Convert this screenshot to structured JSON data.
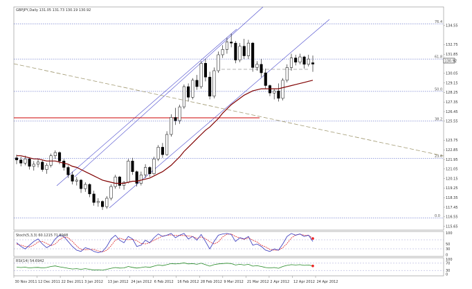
{
  "chart_data": {
    "type": "candlestick",
    "title": "GBPJPY,Daily 131.05 131.73 130.19 130.92",
    "x_labels": [
      "30 Nov 2011",
      "12 Dec 2011",
      "22 Dec 2011",
      "3 Jan 2012",
      "13 Jan 2012",
      "24 Jan 2012",
      "6 Feb 2012",
      "16 Feb 2012",
      "28 Feb 2012",
      "9 Mar 2012",
      "21 Mar 2012",
      "2 Apr 2012",
      "12 Apr 2012",
      "24 Apr 2012"
    ],
    "y_ticks": [
      "134.55",
      "132.75",
      "131.85",
      "130.05",
      "129.15",
      "128.25",
      "127.35",
      "126.45",
      "125.55",
      "123.75",
      "122.85",
      "121.95",
      "121.05",
      "120.15",
      "119.25",
      "118.35",
      "117.45",
      "116.55",
      "115.65"
    ],
    "ylim": [
      115.3,
      136.3
    ],
    "current_price_label": "130.92",
    "fib_levels": [
      {
        "label": "76.4",
        "value": 134.7
      },
      {
        "label": "61.8",
        "value": 131.4
      },
      {
        "label": "50.0",
        "value": 128.35
      },
      {
        "label": "38.2",
        "value": 125.55
      },
      {
        "label": "23.6",
        "value": 122.05
      },
      {
        "label": "0.0",
        "value": 116.45
      }
    ],
    "candles": [
      [
        122.1,
        122.4,
        121.5,
        121.9
      ],
      [
        121.9,
        122.2,
        121.3,
        121.6
      ],
      [
        121.6,
        122.3,
        121.4,
        122.0
      ],
      [
        122.0,
        122.1,
        121.0,
        121.3
      ],
      [
        121.3,
        121.8,
        120.9,
        121.5
      ],
      [
        121.5,
        122.0,
        121.2,
        121.7
      ],
      [
        121.7,
        121.9,
        120.8,
        121.0
      ],
      [
        121.0,
        121.6,
        120.6,
        121.4
      ],
      [
        121.4,
        122.5,
        121.2,
        122.3
      ],
      [
        122.3,
        122.8,
        122.0,
        122.6
      ],
      [
        122.6,
        122.7,
        121.5,
        121.8
      ],
      [
        121.8,
        122.0,
        120.9,
        121.2
      ],
      [
        121.2,
        121.4,
        120.2,
        120.5
      ],
      [
        120.5,
        120.8,
        119.6,
        119.9
      ],
      [
        119.9,
        120.3,
        119.5,
        120.0
      ],
      [
        120.0,
        120.1,
        118.8,
        119.2
      ],
      [
        119.2,
        119.8,
        118.9,
        119.6
      ],
      [
        119.6,
        119.7,
        118.4,
        118.7
      ],
      [
        118.7,
        119.0,
        117.6,
        117.9
      ],
      [
        117.9,
        118.3,
        117.5,
        118.0
      ],
      [
        118.0,
        118.1,
        117.2,
        117.5
      ],
      [
        117.5,
        118.5,
        117.3,
        118.3
      ],
      [
        118.3,
        119.6,
        118.1,
        119.4
      ],
      [
        119.4,
        120.5,
        119.2,
        120.3
      ],
      [
        120.3,
        120.4,
        119.2,
        119.5
      ],
      [
        119.5,
        119.9,
        119.1,
        119.8
      ],
      [
        119.8,
        122.0,
        119.7,
        121.8
      ],
      [
        121.8,
        122.1,
        120.5,
        120.8
      ],
      [
        120.8,
        120.9,
        119.4,
        119.7
      ],
      [
        119.7,
        120.8,
        119.5,
        120.5
      ],
      [
        120.5,
        121.5,
        120.2,
        121.2
      ],
      [
        121.2,
        121.3,
        120.3,
        120.6
      ],
      [
        120.6,
        122.2,
        120.5,
        122.0
      ],
      [
        122.0,
        123.3,
        121.8,
        123.1
      ],
      [
        123.1,
        123.5,
        122.1,
        122.4
      ],
      [
        122.4,
        124.6,
        122.3,
        124.3
      ],
      [
        124.3,
        126.2,
        124.1,
        125.9
      ],
      [
        125.9,
        126.8,
        125.2,
        125.6
      ],
      [
        125.6,
        127.1,
        125.3,
        126.9
      ],
      [
        126.9,
        129.0,
        126.7,
        128.8
      ],
      [
        128.8,
        129.1,
        127.4,
        127.8
      ],
      [
        127.8,
        129.6,
        127.6,
        129.4
      ],
      [
        129.4,
        129.9,
        128.5,
        128.8
      ],
      [
        128.8,
        131.2,
        128.6,
        131.0
      ],
      [
        131.0,
        131.4,
        129.3,
        129.7
      ],
      [
        129.7,
        130.2,
        127.6,
        127.9
      ],
      [
        127.9,
        130.6,
        127.7,
        130.3
      ],
      [
        130.3,
        132.1,
        130.1,
        131.8
      ],
      [
        131.8,
        132.7,
        131.5,
        132.3
      ],
      [
        132.3,
        133.4,
        131.9,
        133.0
      ],
      [
        133.0,
        133.8,
        132.5,
        132.9
      ],
      [
        132.9,
        133.1,
        131.0,
        131.3
      ],
      [
        131.3,
        132.9,
        131.1,
        132.6
      ],
      [
        132.6,
        133.3,
        131.4,
        131.7
      ],
      [
        131.7,
        133.2,
        131.4,
        132.9
      ],
      [
        132.9,
        133.0,
        130.2,
        130.6
      ],
      [
        130.6,
        131.2,
        130.3,
        130.9
      ],
      [
        130.9,
        131.4,
        129.7,
        130.1
      ],
      [
        130.1,
        130.5,
        128.6,
        128.9
      ],
      [
        128.9,
        129.0,
        127.9,
        128.2
      ],
      [
        128.2,
        128.6,
        127.6,
        128.4
      ],
      [
        128.4,
        129.1,
        127.4,
        127.7
      ],
      [
        127.7,
        129.6,
        127.5,
        129.4
      ],
      [
        129.4,
        130.9,
        129.2,
        130.6
      ],
      [
        130.6,
        131.9,
        130.3,
        131.5
      ],
      [
        131.5,
        131.8,
        130.8,
        131.1
      ],
      [
        131.1,
        131.9,
        130.9,
        131.6
      ],
      [
        131.6,
        131.7,
        130.5,
        130.9
      ],
      [
        130.9,
        131.8,
        130.7,
        131.4
      ],
      [
        131.05,
        131.73,
        130.19,
        130.92
      ]
    ],
    "moving_average": {
      "color": "#800000",
      "values": [
        122.3,
        122.3,
        122.2,
        122.1,
        122.0,
        122.0,
        121.9,
        121.8,
        121.8,
        121.8,
        121.7,
        121.6,
        121.5,
        121.3,
        121.2,
        121.0,
        120.8,
        120.6,
        120.4,
        120.2,
        120.0,
        119.9,
        119.8,
        119.7,
        119.7,
        119.7,
        119.8,
        119.9,
        119.9,
        120.0,
        120.1,
        120.2,
        120.4,
        120.6,
        120.8,
        121.1,
        121.4,
        121.8,
        122.2,
        122.7,
        123.1,
        123.5,
        123.9,
        124.3,
        124.7,
        125.0,
        125.4,
        125.8,
        126.3,
        126.7,
        127.1,
        127.4,
        127.7,
        128.0,
        128.2,
        128.4,
        128.5,
        128.6,
        128.6,
        128.6,
        128.6,
        128.6,
        128.7,
        128.8,
        128.9,
        129.0,
        129.1,
        129.2,
        129.3,
        129.4
      ]
    },
    "stochastic": {
      "label": "Stoch(5,3,3) 60.1215 71.8948",
      "ticks": [
        "100",
        "50",
        "30",
        "0"
      ],
      "main": [
        55,
        40,
        30,
        45,
        60,
        70,
        50,
        35,
        45,
        70,
        85,
        80,
        60,
        40,
        25,
        20,
        35,
        30,
        20,
        15,
        20,
        40,
        70,
        85,
        65,
        55,
        80,
        70,
        40,
        45,
        65,
        55,
        75,
        90,
        80,
        85,
        92,
        75,
        85,
        92,
        70,
        80,
        65,
        88,
        60,
        30,
        60,
        85,
        90,
        92,
        88,
        60,
        75,
        70,
        80,
        45,
        50,
        40,
        25,
        20,
        30,
        25,
        50,
        80,
        92,
        85,
        90,
        80,
        85,
        60
      ],
      "signal": [
        50,
        45,
        40,
        38,
        45,
        58,
        60,
        52,
        43,
        50,
        67,
        78,
        75,
        60,
        42,
        28,
        27,
        28,
        28,
        22,
        18,
        25,
        43,
        65,
        73,
        68,
        67,
        68,
        63,
        52,
        50,
        55,
        65,
        73,
        82,
        85,
        86,
        84,
        84,
        84,
        82,
        80,
        72,
        78,
        71,
        59,
        50,
        58,
        78,
        89,
        90,
        80,
        74,
        68,
        75,
        65,
        58,
        45,
        38,
        28,
        25,
        25,
        35,
        52,
        74,
        86,
        89,
        85,
        85,
        72
      ]
    },
    "rsi": {
      "label": "RSI(14) 54.6942",
      "ticks": [
        "100",
        "70",
        "30",
        "0"
      ],
      "values": [
        48,
        46,
        48,
        44,
        46,
        47,
        44,
        46,
        52,
        55,
        50,
        46,
        42,
        38,
        40,
        36,
        40,
        36,
        32,
        33,
        31,
        36,
        42,
        46,
        43,
        44,
        52,
        47,
        43,
        46,
        50,
        47,
        54,
        60,
        57,
        62,
        68,
        66,
        68,
        72,
        66,
        68,
        64,
        70,
        62,
        54,
        62,
        66,
        68,
        70,
        68,
        60,
        64,
        60,
        64,
        54,
        56,
        52,
        46,
        44,
        46,
        42,
        52,
        58,
        62,
        60,
        62,
        58,
        60,
        55
      ]
    }
  }
}
